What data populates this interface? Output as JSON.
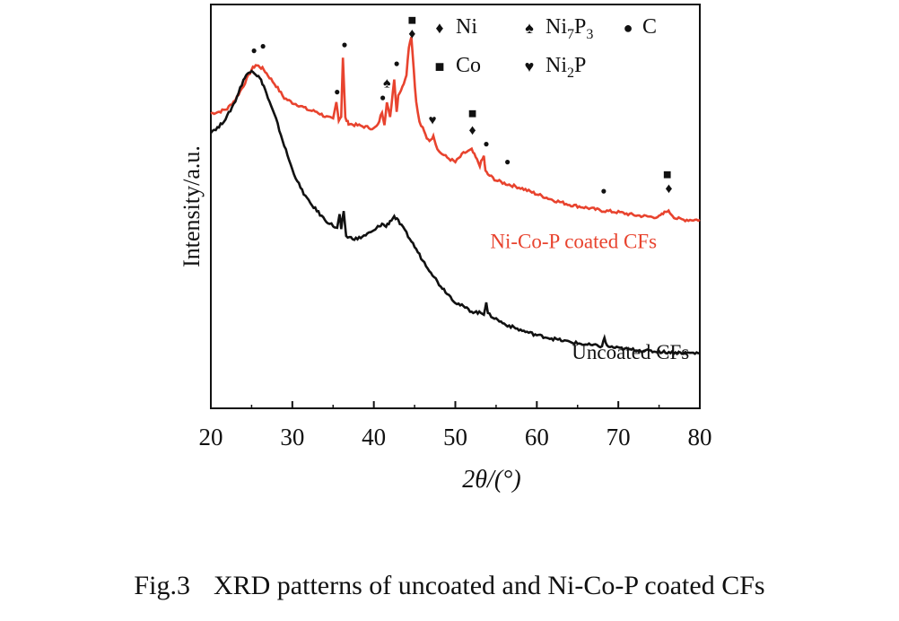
{
  "caption": {
    "number": "Fig.3",
    "text": "XRD patterns of uncoated and Ni-Co-P coated CFs"
  },
  "chart_data": {
    "type": "line",
    "xlabel": "2θ/(°)",
    "ylabel": "Intensity/a.u.",
    "xlim": [
      20,
      80
    ],
    "xticks": [
      20,
      30,
      40,
      50,
      60,
      70,
      80
    ],
    "ylim": [
      0,
      100
    ],
    "yticks_shown": false,
    "grid": false,
    "series": [
      {
        "name": "Ni-Co-P coated CFs",
        "color": "#e8432e",
        "x": [
          20,
          21,
          22,
          23,
          24,
          25,
          25.5,
          26,
          26.5,
          27,
          28,
          29,
          30,
          31,
          32,
          33,
          34,
          35,
          35.4,
          35.7,
          36,
          36.2,
          36.5,
          36.8,
          37,
          38,
          39,
          40,
          40.5,
          41,
          41.3,
          41.6,
          42,
          42.5,
          42.8,
          43,
          43.5,
          44,
          44.3,
          44.6,
          44.9,
          45.2,
          45.6,
          46,
          46.5,
          47,
          47.3,
          47.6,
          48,
          49,
          50,
          51,
          52,
          52.5,
          53,
          53.5,
          53.7,
          54,
          55,
          56,
          58,
          60,
          62,
          64,
          66,
          68,
          70,
          72,
          74,
          75,
          75.5,
          76,
          76.5,
          77,
          78,
          79,
          80
        ],
        "y": [
          75.1,
          75.6,
          76.5,
          79.3,
          83.5,
          88.4,
          89.8,
          89.3,
          88.4,
          86.7,
          83.5,
          79.8,
          78.4,
          77.4,
          76.1,
          75.6,
          74.2,
          73.3,
          78.4,
          73.3,
          74.2,
          92.1,
          73.7,
          72.4,
          71.9,
          71.5,
          71.0,
          70.5,
          71.5,
          75.6,
          71.9,
          78.4,
          73.7,
          85.8,
          75.6,
          80.7,
          83.0,
          87.1,
          95.4,
          98.6,
          88.4,
          78.4,
          72.4,
          70.5,
          67.7,
          66.8,
          68.7,
          65.8,
          63.5,
          61.7,
          60.3,
          63.0,
          64.0,
          61.7,
          59.4,
          62.1,
          57.5,
          56.6,
          54.8,
          53.9,
          52.5,
          50.6,
          48.8,
          47.4,
          46.5,
          45.6,
          45.1,
          44.2,
          43.7,
          43.7,
          44.6,
          45.6,
          44.6,
          43.3,
          42.8,
          42.8,
          42.8
        ]
      },
      {
        "name": "Uncoated CFs",
        "color": "#111111",
        "x": [
          20,
          21,
          22,
          23,
          24,
          24.5,
          25,
          25.5,
          26,
          26.5,
          27,
          28,
          29,
          30,
          31,
          32,
          33,
          34,
          35,
          35.5,
          35.8,
          36,
          36.3,
          36.6,
          37,
          38,
          39,
          40,
          40.5,
          41,
          41.5,
          42,
          42.5,
          43,
          44,
          45,
          46,
          47,
          48,
          50,
          52,
          53.5,
          53.8,
          54,
          56,
          58,
          60,
          62,
          64,
          66,
          68,
          68.3,
          68.6,
          70,
          72,
          74,
          76,
          78,
          80
        ],
        "y": [
          69.6,
          71.0,
          74.2,
          78.9,
          85.3,
          87.1,
          88.4,
          87.1,
          85.8,
          83.5,
          79.8,
          73.3,
          65.4,
          58.0,
          52.5,
          48.4,
          45.6,
          42.8,
          41.0,
          40.1,
          44.6,
          39.6,
          45.6,
          37.8,
          37.4,
          37.0,
          38.2,
          39.4,
          40.6,
          41.5,
          40.8,
          42.4,
          43.8,
          42.4,
          38.7,
          34.7,
          30.5,
          27.0,
          23.3,
          17.8,
          15.0,
          14.3,
          18.0,
          14.2,
          11.2,
          9.3,
          7.8,
          6.7,
          5.7,
          4.9,
          4.4,
          7.0,
          4.4,
          3.8,
          3.3,
          2.9,
          2.6,
          2.4,
          2.3
        ]
      }
    ],
    "legend": {
      "position": "top-right",
      "items": [
        {
          "symbol": "♦",
          "label": "Ni"
        },
        {
          "symbol": "♠",
          "label": "Ni7P3"
        },
        {
          "symbol": "●",
          "label": "C"
        },
        {
          "symbol": "■",
          "label": "Co"
        },
        {
          "symbol": "♥",
          "label": "Ni2P"
        }
      ]
    },
    "peak_markers": [
      {
        "symbol": "●",
        "x": 25.3,
        "y": 93.2
      },
      {
        "symbol": "●",
        "x": 26.4,
        "y": 94.6
      },
      {
        "symbol": "●",
        "x": 35.5,
        "y": 80.7
      },
      {
        "symbol": "●",
        "x": 36.4,
        "y": 95.0
      },
      {
        "symbol": "♠",
        "x": 41.6,
        "y": 83.0
      },
      {
        "symbol": "●",
        "x": 41.1,
        "y": 78.9
      },
      {
        "symbol": "●",
        "x": 42.8,
        "y": 89.3
      },
      {
        "symbol": "■",
        "x": 44.7,
        "y": 102.0
      },
      {
        "symbol": "♦",
        "x": 44.7,
        "y": 98.0
      },
      {
        "symbol": "♥",
        "x": 47.2,
        "y": 71.8
      },
      {
        "symbol": "■",
        "x": 52.1,
        "y": 73.7
      },
      {
        "symbol": "♦",
        "x": 52.1,
        "y": 68.6
      },
      {
        "symbol": "●",
        "x": 53.8,
        "y": 64.9
      },
      {
        "symbol": "●",
        "x": 56.4,
        "y": 59.4
      },
      {
        "symbol": "●",
        "x": 68.2,
        "y": 50.6
      },
      {
        "symbol": "■",
        "x": 76.0,
        "y": 55.2
      },
      {
        "symbol": "♦",
        "x": 76.2,
        "y": 51.0
      }
    ],
    "annotations": [
      {
        "text": "Ni-Co-P coated CFs",
        "color": "#e8432e",
        "x": 64.5,
        "y": 34.2
      },
      {
        "text": "Uncoated CFs",
        "color": "#111111",
        "x": 71.5,
        "y": 0.6
      }
    ]
  }
}
